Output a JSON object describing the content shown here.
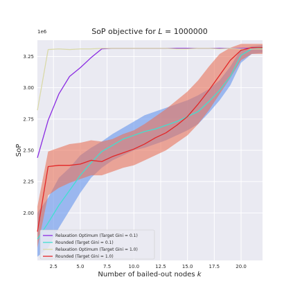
{
  "chart_data": {
    "type": "line",
    "title": "SoP objective for L = 1000000",
    "title_prefix": "SoP objective for ",
    "title_var": "L",
    "title_suffix": " = 1000000",
    "xlabel": "Number of bailed-out nodes k",
    "xlabel_prefix": "Number of bailed-out nodes ",
    "xlabel_var": "k",
    "ylabel": "SoP",
    "y_offset_text": "1e6",
    "xlim": [
      1,
      22
    ],
    "ylim": [
      1.62,
      3.38
    ],
    "x_ticks": [
      2.5,
      5.0,
      7.5,
      10.0,
      12.5,
      15.0,
      17.5,
      20.0
    ],
    "x_tick_labels": [
      "2.5",
      "5.0",
      "7.5",
      "10.0",
      "12.5",
      "15.0",
      "17.5",
      "20.0"
    ],
    "y_ticks": [
      2.0,
      2.25,
      2.5,
      2.75,
      3.0,
      3.25
    ],
    "y_tick_labels": [
      "2.00",
      "2.25",
      "2.50",
      "2.75",
      "3.00",
      "3.25"
    ],
    "grid": true,
    "legend_position": "lower-left",
    "x": [
      1,
      2,
      3,
      4,
      5,
      6,
      7,
      8,
      9,
      10,
      11,
      12,
      13,
      14,
      15,
      16,
      17,
      18,
      19,
      20,
      21,
      22
    ],
    "series": [
      {
        "name": "Relaxation Optimum (Target Gini = 0.1)",
        "color": "#8a2be2",
        "values": [
          2.44,
          2.74,
          2.95,
          3.09,
          3.16,
          3.24,
          3.31,
          3.315,
          3.315,
          3.315,
          3.315,
          3.315,
          3.315,
          3.315,
          3.315,
          3.315,
          3.315,
          3.315,
          3.315,
          3.315,
          3.315,
          3.315
        ]
      },
      {
        "name": "Rounded (Target Gini = 0.1)",
        "color": "#40e0d0",
        "values": [
          1.79,
          1.92,
          2.06,
          2.18,
          2.3,
          2.4,
          2.49,
          2.54,
          2.59,
          2.62,
          2.65,
          2.67,
          2.7,
          2.73,
          2.77,
          2.81,
          2.89,
          2.98,
          3.09,
          3.26,
          3.31,
          3.315
        ],
        "band_low": [
          1.65,
          1.72,
          1.88,
          2.02,
          2.16,
          2.28,
          2.36,
          2.42,
          2.46,
          2.5,
          2.52,
          2.55,
          2.58,
          2.62,
          2.66,
          2.71,
          2.8,
          2.9,
          3.02,
          3.2,
          3.27,
          3.28
        ],
        "band_high": [
          2.0,
          2.12,
          2.28,
          2.36,
          2.46,
          2.52,
          2.57,
          2.63,
          2.68,
          2.73,
          2.78,
          2.81,
          2.84,
          2.87,
          2.9,
          2.94,
          2.99,
          3.06,
          3.17,
          3.31,
          3.33,
          3.34
        ]
      },
      {
        "name": "Relaxation Optimum (Target Gini = 1.0)",
        "color": "#d9d9a8",
        "values": [
          2.82,
          3.305,
          3.31,
          3.305,
          3.31,
          3.31,
          3.315,
          3.315,
          3.315,
          3.315,
          3.315,
          3.315,
          3.315,
          3.31,
          3.31,
          3.315,
          3.315,
          3.31,
          3.315,
          3.31,
          3.31,
          3.31
        ]
      },
      {
        "name": "Rounded (Target Gini = 1.0)",
        "color": "#e32626",
        "values": [
          1.85,
          2.37,
          2.38,
          2.38,
          2.39,
          2.42,
          2.41,
          2.45,
          2.48,
          2.51,
          2.55,
          2.6,
          2.64,
          2.7,
          2.77,
          2.87,
          2.98,
          3.1,
          3.22,
          3.3,
          3.32,
          3.32
        ],
        "band_low": [
          1.72,
          2.14,
          2.2,
          2.24,
          2.27,
          2.3,
          2.3,
          2.33,
          2.36,
          2.38,
          2.42,
          2.46,
          2.5,
          2.56,
          2.62,
          2.71,
          2.82,
          2.95,
          3.08,
          3.22,
          3.27,
          3.27
        ],
        "band_high": [
          2.05,
          2.49,
          2.52,
          2.55,
          2.56,
          2.58,
          2.57,
          2.59,
          2.63,
          2.66,
          2.71,
          2.77,
          2.83,
          2.9,
          2.97,
          3.06,
          3.17,
          3.27,
          3.32,
          3.35,
          3.35,
          3.35
        ]
      }
    ],
    "band_colors": {
      "Rounded (Target Gini = 0.1)": "#6495ed",
      "Rounded (Target Gini = 1.0)": "#e8735a"
    }
  }
}
